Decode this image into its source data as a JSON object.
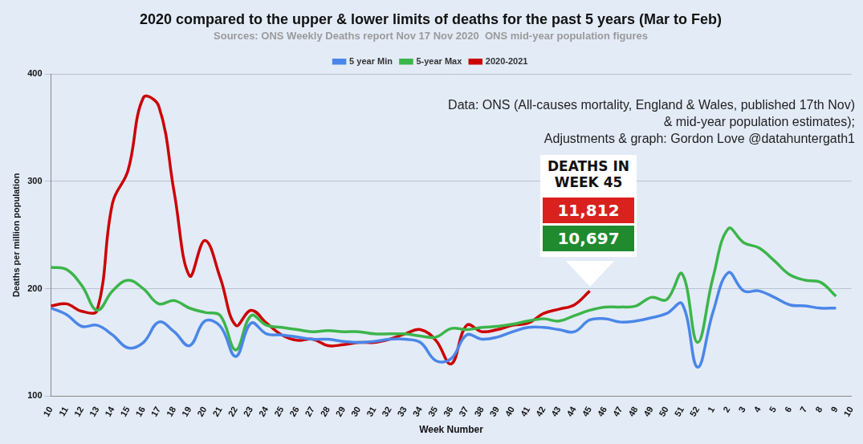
{
  "chart_data": {
    "type": "line",
    "title": "2020 compared to the upper & lower limits of deaths for the past 5 years (Mar to Feb)",
    "subtitle": "Sources: ONS Weekly Deaths report Nov 17 Nov 2020  ONS mid-year population figures",
    "x_label": "Week Number",
    "y_label": "Deaths per million population",
    "annotations": [
      "Data: ONS (All-causes mortality, England & Wales, published 17th Nov)",
      "& mid-year population estimates);",
      "Adjustments & graph: Gordon Love @datahuntergath1"
    ],
    "callout": {
      "text": "DEATHS IN WEEK 45",
      "values": [
        11812,
        10697
      ],
      "value_labels": [
        "11,812",
        "10,697"
      ],
      "colors": [
        "#d9211e",
        "#1f8a2e"
      ]
    },
    "categories": [
      "10",
      "11",
      "12",
      "13",
      "14",
      "15",
      "16",
      "17",
      "18",
      "19",
      "20",
      "21",
      "22",
      "23",
      "24",
      "25",
      "26",
      "27",
      "28",
      "29",
      "30",
      "31",
      "32",
      "33",
      "34",
      "35",
      "36",
      "37",
      "38",
      "39",
      "40",
      "41",
      "42",
      "43",
      "44",
      "45",
      "46",
      "47",
      "48",
      "49",
      "50",
      "51",
      "52",
      "1",
      "2",
      "3",
      "4",
      "5",
      "6",
      "7",
      "8",
      "9",
      "10"
    ],
    "series": [
      {
        "name": "5 year Min",
        "color": "#4a86e8",
        "values": [
          182,
          176,
          165,
          166,
          157,
          145,
          150,
          169,
          160,
          147,
          170,
          165,
          137,
          168,
          158,
          157,
          155,
          153,
          153,
          151,
          150,
          151,
          153,
          153,
          150,
          133,
          135,
          157,
          153,
          155,
          160,
          164,
          164,
          162,
          160,
          171,
          172,
          169,
          170,
          173,
          177,
          186,
          127,
          178,
          215,
          198,
          198,
          192,
          185,
          184,
          182,
          182,
          null
        ]
      },
      {
        "name": "5-year Max",
        "color": "#3cb54a",
        "values": [
          220,
          218,
          203,
          180,
          198,
          208,
          200,
          186,
          189,
          182,
          178,
          175,
          143,
          175,
          166,
          164,
          162,
          160,
          161,
          160,
          160,
          158,
          158,
          158,
          156,
          155,
          163,
          162,
          164,
          165,
          167,
          170,
          172,
          170,
          175,
          180,
          183,
          183,
          184,
          192,
          190,
          214,
          150,
          210,
          256,
          243,
          238,
          226,
          213,
          208,
          206,
          193,
          null
        ]
      },
      {
        "name": "2020-2021",
        "color": "#cc0000",
        "values": [
          184,
          186,
          179,
          180,
          280,
          310,
          378,
          370,
          290,
          212,
          245,
          210,
          166,
          180,
          168,
          157,
          152,
          153,
          147,
          148,
          150,
          150,
          153,
          158,
          162,
          152,
          130,
          166,
          160,
          162,
          166,
          168,
          177,
          181,
          185,
          198,
          null,
          null,
          null,
          null,
          null,
          null,
          null,
          null,
          null,
          null,
          null,
          null,
          null,
          null,
          null,
          null,
          null
        ]
      }
    ],
    "ylim": [
      100,
      400
    ],
    "yticks": [
      100,
      200,
      300,
      400
    ],
    "grid": true,
    "legend": "top"
  }
}
